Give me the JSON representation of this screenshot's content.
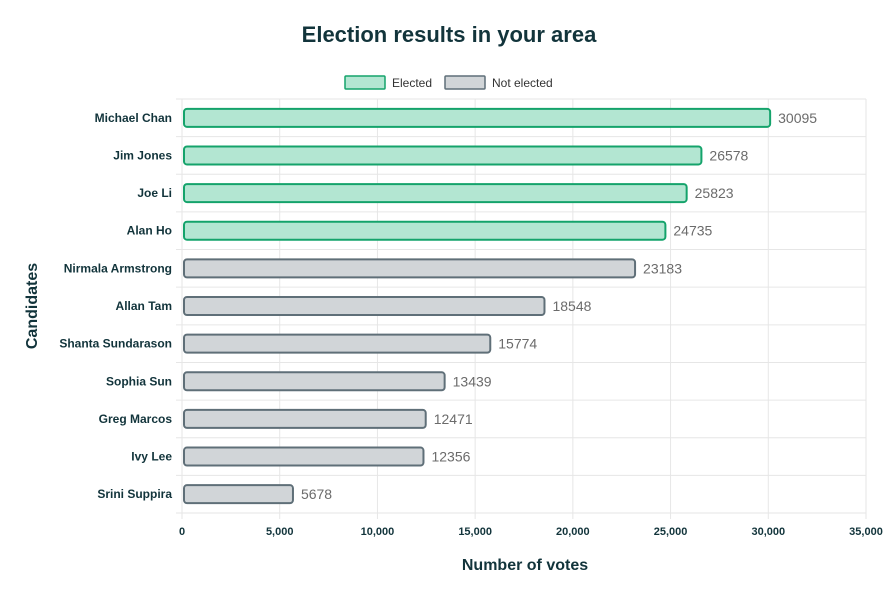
{
  "chart_data": {
    "type": "bar",
    "orientation": "horizontal",
    "title": "Election results in your area",
    "xlabel": "Number of votes",
    "ylabel": "Candidates",
    "xlim": [
      0,
      35000
    ],
    "xticks": [
      0,
      5000,
      10000,
      15000,
      20000,
      25000,
      30000,
      35000
    ],
    "xtick_labels": [
      "0",
      "5,000",
      "10,000",
      "15,000",
      "20,000",
      "25,000",
      "30,000",
      "35,000"
    ],
    "grid": true,
    "legend_position": "top-center",
    "legend": [
      {
        "name": "Elected",
        "fill": "#b3e6d2",
        "stroke": "#14a36b"
      },
      {
        "name": "Not elected",
        "fill": "#d1d5d8",
        "stroke": "#5f6f78"
      }
    ],
    "categories": [
      "Michael Chan",
      "Jim Jones",
      "Joe Li",
      "Alan Ho",
      "Nirmala Armstrong",
      "Allan Tam",
      "Shanta Sundarason",
      "Sophia Sun",
      "Greg Marcos",
      "Ivy Lee",
      "Srini Suppira"
    ],
    "values": [
      30095,
      26578,
      25823,
      24735,
      23183,
      18548,
      15774,
      13439,
      12471,
      12356,
      5678
    ],
    "status": [
      "Elected",
      "Elected",
      "Elected",
      "Elected",
      "Not elected",
      "Not elected",
      "Not elected",
      "Not elected",
      "Not elected",
      "Not elected",
      "Not elected"
    ]
  }
}
